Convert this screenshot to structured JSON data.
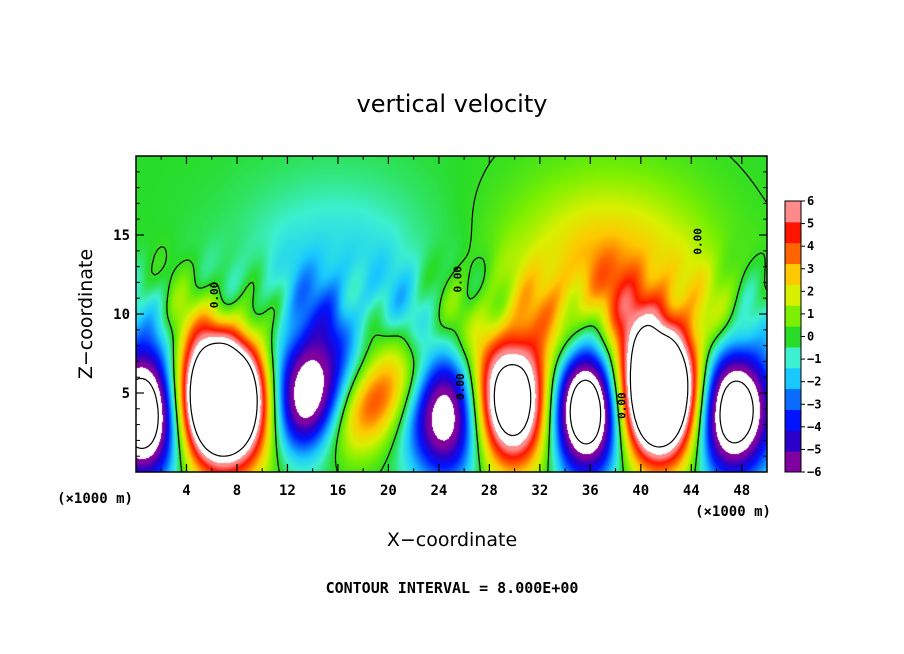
{
  "chart_data": {
    "type": "heatmap",
    "title": "vertical velocity",
    "xlabel": "X−coordinate",
    "ylabel": "Z−coordinate",
    "x_unit": "(×1000 m)",
    "z_unit": "(×1000 m)",
    "xlim": [
      0,
      50
    ],
    "ylim": [
      0,
      20
    ],
    "x_ticks": [
      "4",
      "8",
      "12",
      "16",
      "20",
      "24",
      "28",
      "32",
      "36",
      "40",
      "44",
      "48"
    ],
    "y_ticks": [
      "5",
      "10",
      "15"
    ],
    "colorbar": {
      "range": [
        -6,
        6
      ],
      "ticks": [
        "6",
        "5",
        "4",
        "3",
        "2",
        "1",
        "0",
        "−1",
        "−2",
        "−3",
        "−4",
        "−5",
        "−6"
      ],
      "colors": [
        "#8000a0",
        "#2a00c8",
        "#0014ff",
        "#0a6cff",
        "#19c8ff",
        "#3cf0d0",
        "#28dc28",
        "#7cf000",
        "#d8f000",
        "#ffc800",
        "#ff6400",
        "#ff1400",
        "#ff8a8a"
      ]
    },
    "features": [
      {
        "type": "updraft",
        "x": 6.8,
        "z": 4.6,
        "strength": 18
      },
      {
        "type": "updraft",
        "x": 18.5,
        "z": 4.3,
        "strength": 5.5
      },
      {
        "type": "updraft",
        "x": 29.5,
        "z": 4.4,
        "strength": 12
      },
      {
        "type": "updraft",
        "x": 41.5,
        "z": 4.8,
        "strength": 16
      },
      {
        "type": "updraft",
        "x": 37.5,
        "z": 11.5,
        "strength": 4
      },
      {
        "type": "downdraft",
        "x": 0.8,
        "z": 3.8,
        "strength": -12
      },
      {
        "type": "downdraft",
        "x": 13.5,
        "z": 4.5,
        "strength": -9
      },
      {
        "type": "downdraft",
        "x": 25.0,
        "z": 3.8,
        "strength": -10
      },
      {
        "type": "downdraft",
        "x": 35.8,
        "z": 4.2,
        "strength": -14
      },
      {
        "type": "downdraft",
        "x": 47.0,
        "z": 4.0,
        "strength": -12
      },
      {
        "type": "downdraft",
        "x": 15.8,
        "z": 11.5,
        "strength": -2
      }
    ],
    "contour_labels": [
      "0.00",
      "0.00",
      "0.00",
      "0.00",
      "0.00"
    ],
    "contour_interval": "CONTOUR INTERVAL = 8.000E+00"
  }
}
